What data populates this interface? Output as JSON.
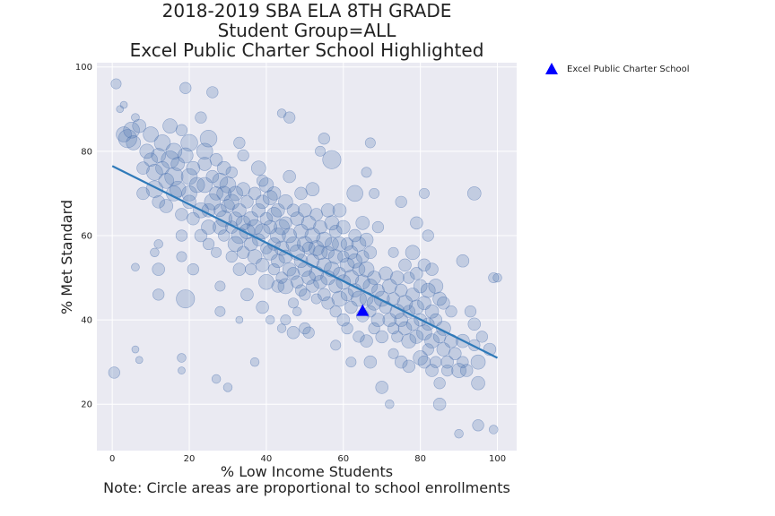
{
  "chart_data": {
    "type": "scatter",
    "title_lines": [
      "2018-2019 SBA ELA 8TH GRADE",
      "Student Group=ALL",
      "Excel Public Charter School Highlighted"
    ],
    "xlabel": "% Low Income Students",
    "xlabel_note": "Note: Circle areas are proportional to school enrollments",
    "ylabel": "% Met Standard",
    "xlim": [
      -4,
      105
    ],
    "ylim": [
      9,
      101
    ],
    "xticks": [
      0,
      20,
      40,
      60,
      80,
      100
    ],
    "yticks": [
      20,
      40,
      60,
      80,
      100
    ],
    "grid": true,
    "legend": {
      "position": "outside-right-top",
      "entries": [
        "Excel Public Charter School"
      ]
    },
    "colors": {
      "background": "#EAEAF2",
      "grid": "#FFFFFF",
      "bubble_fill": "rgba(76,114,176,0.25)",
      "bubble_edge": "rgba(76,114,176,0.55)",
      "trend_line": "#2F7AB9",
      "highlight": "#0000FF"
    },
    "trend_line": {
      "x": [
        0,
        100
      ],
      "y": [
        76.5,
        31
      ]
    },
    "highlight": {
      "name": "Excel Public Charter School",
      "x": 65,
      "y": 42,
      "marker": "triangle"
    },
    "note": "Circle areas are proportional to school enrollments; point sizes given as relative enrollment.",
    "points": [
      [
        1,
        96,
        8
      ],
      [
        0.5,
        27.5,
        10
      ],
      [
        2,
        90,
        4
      ],
      [
        3,
        91,
        4
      ],
      [
        3,
        84,
        18
      ],
      [
        4,
        83,
        26
      ],
      [
        5,
        85,
        20
      ],
      [
        5.5,
        82,
        16
      ],
      [
        6,
        88,
        5
      ],
      [
        7,
        86,
        14
      ],
      [
        6,
        52.5,
        5
      ],
      [
        7,
        30.5,
        4
      ],
      [
        6,
        33,
        4
      ],
      [
        8,
        76,
        12
      ],
      [
        8,
        70,
        12
      ],
      [
        9,
        80,
        16
      ],
      [
        10,
        78,
        14
      ],
      [
        10,
        84,
        18
      ],
      [
        11,
        75,
        20
      ],
      [
        11,
        71,
        22
      ],
      [
        12,
        79,
        16
      ],
      [
        12,
        68,
        12
      ],
      [
        12,
        58,
        6
      ],
      [
        12,
        52,
        12
      ],
      [
        11,
        56,
        6
      ],
      [
        12,
        46,
        10
      ],
      [
        13,
        82,
        20
      ],
      [
        13,
        76,
        14
      ],
      [
        14,
        73,
        18
      ],
      [
        14,
        67,
        14
      ],
      [
        15,
        86,
        16
      ],
      [
        15,
        78,
        24
      ],
      [
        16,
        80,
        20
      ],
      [
        16,
        74,
        26
      ],
      [
        16,
        70,
        18
      ],
      [
        17,
        71,
        20
      ],
      [
        17,
        77,
        14
      ],
      [
        18,
        85,
        10
      ],
      [
        18,
        65,
        12
      ],
      [
        18,
        60,
        10
      ],
      [
        18,
        55,
        8
      ],
      [
        18,
        31,
        6
      ],
      [
        18,
        28,
        4
      ],
      [
        19,
        95,
        10
      ],
      [
        19,
        79,
        18
      ],
      [
        19,
        45,
        26
      ],
      [
        20,
        82,
        22
      ],
      [
        20,
        74,
        20
      ],
      [
        20,
        70,
        18
      ],
      [
        20,
        68,
        14
      ],
      [
        21,
        76,
        14
      ],
      [
        21,
        64,
        12
      ],
      [
        21,
        52,
        10
      ],
      [
        22,
        72,
        18
      ],
      [
        23,
        88,
        10
      ],
      [
        23,
        66,
        18
      ],
      [
        23,
        60,
        12
      ],
      [
        24,
        80,
        20
      ],
      [
        24,
        72,
        18
      ],
      [
        24,
        77,
        14
      ],
      [
        25,
        83,
        22
      ],
      [
        25,
        62,
        16
      ],
      [
        25,
        66,
        14
      ],
      [
        25,
        58,
        10
      ],
      [
        26,
        74,
        12
      ],
      [
        26,
        68,
        20
      ],
      [
        26,
        94,
        10
      ],
      [
        27,
        78,
        12
      ],
      [
        27,
        70,
        14
      ],
      [
        27,
        56,
        8
      ],
      [
        27,
        26,
        6
      ],
      [
        28,
        66,
        12
      ],
      [
        28,
        62,
        16
      ],
      [
        28,
        73,
        18
      ],
      [
        28,
        48,
        8
      ],
      [
        28,
        42,
        8
      ],
      [
        29,
        76,
        14
      ],
      [
        29,
        70,
        16
      ],
      [
        29,
        64,
        20
      ],
      [
        29,
        60,
        10
      ],
      [
        30,
        72,
        20
      ],
      [
        30,
        67,
        14
      ],
      [
        30,
        24,
        6
      ],
      [
        31,
        68,
        18
      ],
      [
        31,
        62,
        12
      ],
      [
        31,
        55,
        10
      ],
      [
        31,
        75,
        10
      ],
      [
        32,
        70,
        16
      ],
      [
        32,
        64,
        14
      ],
      [
        32,
        58,
        18
      ],
      [
        33,
        82,
        10
      ],
      [
        33,
        66,
        14
      ],
      [
        33,
        60,
        20
      ],
      [
        33,
        52,
        12
      ],
      [
        33,
        40,
        4
      ],
      [
        34,
        79,
        10
      ],
      [
        34,
        71,
        14
      ],
      [
        34,
        63,
        16
      ],
      [
        34,
        56,
        12
      ],
      [
        35,
        68,
        12
      ],
      [
        35,
        61,
        18
      ],
      [
        35,
        46,
        12
      ],
      [
        36,
        64,
        16
      ],
      [
        36,
        58,
        14
      ],
      [
        36,
        52,
        10
      ],
      [
        37,
        70,
        12
      ],
      [
        37,
        62,
        18
      ],
      [
        37,
        55,
        16
      ],
      [
        37,
        30,
        6
      ],
      [
        38,
        76,
        16
      ],
      [
        38,
        66,
        14
      ],
      [
        38,
        59,
        12
      ],
      [
        39,
        73,
        10
      ],
      [
        39,
        68,
        14
      ],
      [
        39,
        61,
        18
      ],
      [
        39,
        53,
        14
      ],
      [
        39,
        43,
        12
      ],
      [
        40,
        72,
        16
      ],
      [
        40,
        64,
        12
      ],
      [
        40,
        57,
        10
      ],
      [
        40,
        49,
        18
      ],
      [
        41,
        69,
        16
      ],
      [
        41,
        62,
        14
      ],
      [
        41,
        56,
        18
      ],
      [
        41,
        40,
        6
      ],
      [
        42,
        70,
        14
      ],
      [
        42,
        65,
        16
      ],
      [
        42,
        58,
        12
      ],
      [
        42,
        52,
        10
      ],
      [
        43,
        66,
        14
      ],
      [
        43,
        60,
        18
      ],
      [
        43,
        54,
        14
      ],
      [
        43,
        48,
        12
      ],
      [
        44,
        89,
        6
      ],
      [
        44,
        62,
        18
      ],
      [
        44,
        57,
        16
      ],
      [
        44,
        50,
        10
      ],
      [
        44,
        38,
        6
      ],
      [
        45,
        68,
        16
      ],
      [
        45,
        63,
        12
      ],
      [
        45,
        55,
        14
      ],
      [
        45,
        48,
        18
      ],
      [
        45,
        40,
        8
      ],
      [
        46,
        74,
        12
      ],
      [
        46,
        60,
        16
      ],
      [
        46,
        52,
        14
      ],
      [
        46,
        88,
        10
      ],
      [
        47,
        66,
        12
      ],
      [
        47,
        58,
        16
      ],
      [
        47,
        51,
        12
      ],
      [
        47,
        44,
        8
      ],
      [
        47,
        37,
        12
      ],
      [
        48,
        64,
        14
      ],
      [
        48,
        56,
        18
      ],
      [
        48,
        49,
        12
      ],
      [
        48,
        42,
        6
      ],
      [
        49,
        70,
        12
      ],
      [
        49,
        61,
        16
      ],
      [
        49,
        54,
        14
      ],
      [
        49,
        47,
        10
      ],
      [
        50,
        66,
        14
      ],
      [
        50,
        58,
        18
      ],
      [
        50,
        52,
        16
      ],
      [
        50,
        46,
        10
      ],
      [
        50,
        38,
        10
      ],
      [
        51,
        63,
        16
      ],
      [
        51,
        57,
        12
      ],
      [
        51,
        50,
        14
      ],
      [
        51,
        37,
        10
      ],
      [
        52,
        60,
        18
      ],
      [
        52,
        54,
        14
      ],
      [
        52,
        48,
        12
      ],
      [
        52,
        71,
        14
      ],
      [
        53,
        65,
        12
      ],
      [
        53,
        57,
        18
      ],
      [
        53,
        51,
        16
      ],
      [
        53,
        45,
        8
      ],
      [
        54,
        62,
        14
      ],
      [
        54,
        56,
        16
      ],
      [
        54,
        49,
        14
      ],
      [
        54,
        80,
        8
      ],
      [
        55,
        59,
        18
      ],
      [
        55,
        53,
        16
      ],
      [
        55,
        46,
        12
      ],
      [
        55,
        83,
        10
      ],
      [
        56,
        66,
        14
      ],
      [
        56,
        56,
        12
      ],
      [
        56,
        50,
        16
      ],
      [
        56,
        44,
        12
      ],
      [
        57,
        63,
        16
      ],
      [
        57,
        58,
        14
      ],
      [
        57,
        52,
        18
      ],
      [
        57,
        78,
        26
      ],
      [
        58,
        61,
        12
      ],
      [
        58,
        55,
        16
      ],
      [
        58,
        48,
        14
      ],
      [
        58,
        42,
        10
      ],
      [
        58,
        34,
        8
      ],
      [
        59,
        66,
        14
      ],
      [
        59,
        58,
        16
      ],
      [
        59,
        51,
        12
      ],
      [
        59,
        45,
        18
      ],
      [
        60,
        62,
        14
      ],
      [
        60,
        55,
        10
      ],
      [
        60,
        49,
        16
      ],
      [
        60,
        40,
        12
      ],
      [
        61,
        58,
        12
      ],
      [
        61,
        53,
        16
      ],
      [
        61,
        46,
        12
      ],
      [
        61,
        38,
        10
      ],
      [
        62,
        56,
        14
      ],
      [
        62,
        50,
        18
      ],
      [
        62,
        43,
        12
      ],
      [
        62,
        30,
        8
      ],
      [
        63,
        70,
        20
      ],
      [
        63,
        60,
        12
      ],
      [
        63,
        54,
        16
      ],
      [
        63,
        47,
        14
      ],
      [
        64,
        58,
        16
      ],
      [
        64,
        52,
        12
      ],
      [
        64,
        45,
        18
      ],
      [
        64,
        36,
        10
      ],
      [
        65,
        63,
        14
      ],
      [
        65,
        55,
        12
      ],
      [
        65,
        49,
        16
      ],
      [
        65,
        41,
        12
      ],
      [
        66,
        75,
        8
      ],
      [
        66,
        59,
        14
      ],
      [
        66,
        52,
        18
      ],
      [
        66,
        45,
        14
      ],
      [
        66,
        35,
        12
      ],
      [
        67,
        82,
        8
      ],
      [
        67,
        56,
        12
      ],
      [
        67,
        48,
        16
      ],
      [
        67,
        42,
        10
      ],
      [
        67,
        30,
        12
      ],
      [
        68,
        70,
        8
      ],
      [
        68,
        50,
        14
      ],
      [
        68,
        44,
        16
      ],
      [
        68,
        38,
        10
      ],
      [
        69,
        62,
        10
      ],
      [
        69,
        47,
        12
      ],
      [
        69,
        40,
        14
      ],
      [
        70,
        45,
        18
      ],
      [
        70,
        36,
        12
      ],
      [
        70,
        24,
        12
      ],
      [
        71,
        51,
        14
      ],
      [
        71,
        43,
        12
      ],
      [
        72,
        48,
        16
      ],
      [
        72,
        40,
        14
      ],
      [
        72,
        20,
        6
      ],
      [
        73,
        56,
        8
      ],
      [
        73,
        45,
        12
      ],
      [
        73,
        38,
        10
      ],
      [
        73,
        32,
        8
      ],
      [
        74,
        50,
        14
      ],
      [
        74,
        42,
        16
      ],
      [
        74,
        36,
        10
      ],
      [
        75,
        68,
        10
      ],
      [
        75,
        47,
        12
      ],
      [
        75,
        40,
        14
      ],
      [
        75,
        30,
        12
      ],
      [
        76,
        53,
        12
      ],
      [
        76,
        44,
        18
      ],
      [
        76,
        38,
        14
      ],
      [
        77,
        50,
        10
      ],
      [
        77,
        42,
        12
      ],
      [
        77,
        35,
        16
      ],
      [
        77,
        29,
        12
      ],
      [
        78,
        56,
        16
      ],
      [
        78,
        46,
        14
      ],
      [
        78,
        39,
        12
      ],
      [
        79,
        63,
        12
      ],
      [
        79,
        51,
        12
      ],
      [
        79,
        43,
        16
      ],
      [
        79,
        36,
        14
      ],
      [
        80,
        48,
        14
      ],
      [
        80,
        40,
        12
      ],
      [
        80,
        31,
        16
      ],
      [
        81,
        70,
        8
      ],
      [
        81,
        53,
        12
      ],
      [
        81,
        44,
        14
      ],
      [
        81,
        37,
        18
      ],
      [
        81,
        30,
        12
      ],
      [
        82,
        60,
        10
      ],
      [
        82,
        47,
        16
      ],
      [
        82,
        39,
        12
      ],
      [
        82,
        33,
        10
      ],
      [
        83,
        52,
        12
      ],
      [
        83,
        42,
        14
      ],
      [
        83,
        35,
        16
      ],
      [
        83,
        28,
        12
      ],
      [
        84,
        48,
        16
      ],
      [
        84,
        40,
        12
      ],
      [
        84,
        30,
        10
      ],
      [
        85,
        45,
        14
      ],
      [
        85,
        36,
        12
      ],
      [
        85,
        25,
        10
      ],
      [
        85,
        20,
        12
      ],
      [
        86,
        44,
        12
      ],
      [
        86,
        38,
        16
      ],
      [
        86,
        33,
        14
      ],
      [
        87,
        30,
        12
      ],
      [
        87,
        28,
        10
      ],
      [
        88,
        42,
        10
      ],
      [
        88,
        35,
        14
      ],
      [
        89,
        32,
        12
      ],
      [
        90,
        28,
        16
      ],
      [
        90,
        13,
        6
      ],
      [
        91,
        54,
        12
      ],
      [
        91,
        35,
        14
      ],
      [
        91,
        30,
        10
      ],
      [
        92,
        28,
        12
      ],
      [
        93,
        42,
        10
      ],
      [
        94,
        70,
        14
      ],
      [
        94,
        39,
        12
      ],
      [
        94,
        34,
        10
      ],
      [
        95,
        30,
        16
      ],
      [
        95,
        25,
        14
      ],
      [
        95,
        15,
        10
      ],
      [
        96,
        36,
        10
      ],
      [
        98,
        33,
        12
      ],
      [
        99,
        50,
        8
      ],
      [
        99,
        14,
        6
      ],
      [
        100,
        50,
        6
      ]
    ]
  }
}
